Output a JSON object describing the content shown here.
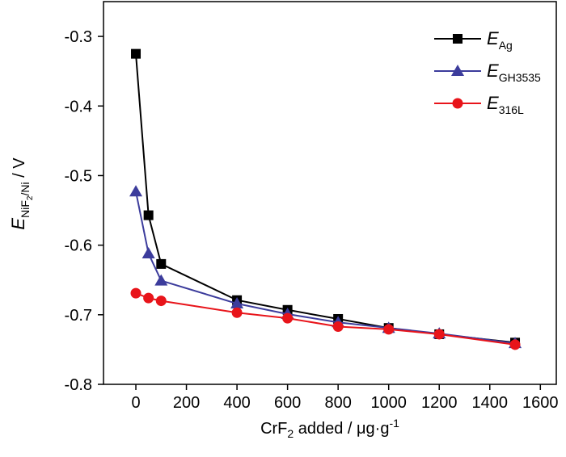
{
  "chart_data": {
    "type": "line",
    "x_label": "CrF2 added / μg·g-1",
    "y_label": "ENiF2/Ni / V",
    "x": [
      0,
      50,
      100,
      400,
      600,
      800,
      1000,
      1200,
      1500
    ],
    "series": [
      {
        "name": "EAg",
        "color": "#000000",
        "marker": "square",
        "values": [
          -0.325,
          -0.557,
          -0.627,
          -0.679,
          -0.693,
          -0.706,
          -0.719,
          -0.728,
          -0.74
        ]
      },
      {
        "name": "EGH3535",
        "color": "#3c3c9c",
        "marker": "triangle",
        "values": [
          -0.523,
          -0.612,
          -0.651,
          -0.684,
          -0.699,
          -0.711,
          -0.719,
          -0.727,
          -0.741
        ]
      },
      {
        "name": "E316L",
        "color": "#e8141a",
        "marker": "circle",
        "values": [
          -0.669,
          -0.676,
          -0.68,
          -0.697,
          -0.705,
          -0.717,
          -0.721,
          -0.728,
          -0.743
        ]
      }
    ],
    "xlim": [
      -128,
      1663
    ],
    "xticks": [
      0,
      200,
      400,
      600,
      800,
      1000,
      1200,
      1400,
      1600
    ],
    "ylim": [
      -0.8,
      -0.25
    ],
    "yticks": [
      -0.8,
      -0.7,
      -0.6,
      -0.5,
      -0.4,
      -0.3
    ],
    "legend": "top-right",
    "grid": false
  }
}
